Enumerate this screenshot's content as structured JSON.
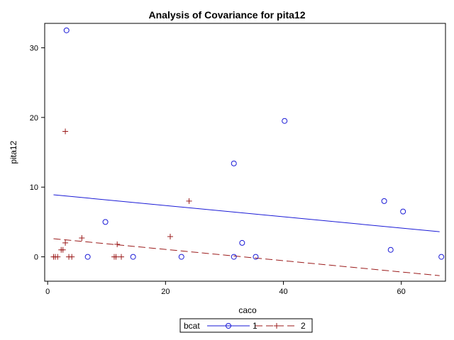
{
  "chart_data": {
    "type": "scatter",
    "title": "Analysis of Covariance for pita12",
    "xlabel": "caco",
    "ylabel": "pita12",
    "xlim": [
      -0.5,
      67.5
    ],
    "ylim": [
      -3.5,
      33.5
    ],
    "xticks": [
      0,
      20,
      40,
      60
    ],
    "yticks": [
      0,
      10,
      20,
      30
    ],
    "grid": false,
    "legend": {
      "title": "bcat",
      "placement": "bottom-center",
      "entries": [
        "1",
        "2"
      ]
    },
    "series": [
      {
        "name": "1",
        "marker": "circle",
        "color": "#1a1ad6",
        "line_style": "solid",
        "points": [
          {
            "x": 3.2,
            "y": 32.5
          },
          {
            "x": 6.8,
            "y": 0
          },
          {
            "x": 9.8,
            "y": 5.0
          },
          {
            "x": 14.5,
            "y": 0
          },
          {
            "x": 22.7,
            "y": 0
          },
          {
            "x": 31.6,
            "y": 13.4
          },
          {
            "x": 31.6,
            "y": 0
          },
          {
            "x": 33.0,
            "y": 2.0
          },
          {
            "x": 35.3,
            "y": 0
          },
          {
            "x": 40.2,
            "y": 19.5
          },
          {
            "x": 57.1,
            "y": 8.0
          },
          {
            "x": 58.2,
            "y": 1.0
          },
          {
            "x": 60.3,
            "y": 6.5
          },
          {
            "x": 66.8,
            "y": 0
          }
        ],
        "fit_line": {
          "x": [
            1.0,
            66.5
          ],
          "y": [
            8.9,
            3.6
          ]
        }
      },
      {
        "name": "2",
        "marker": "plus",
        "color": "#9b1b1b",
        "line_style": "dashed",
        "points": [
          {
            "x": 1.0,
            "y": 0
          },
          {
            "x": 1.3,
            "y": 0
          },
          {
            "x": 1.7,
            "y": 0
          },
          {
            "x": 2.3,
            "y": 1.0
          },
          {
            "x": 2.6,
            "y": 1.0
          },
          {
            "x": 3.0,
            "y": 18.0
          },
          {
            "x": 3.0,
            "y": 2.0
          },
          {
            "x": 3.6,
            "y": 0
          },
          {
            "x": 4.1,
            "y": 0
          },
          {
            "x": 5.8,
            "y": 2.7
          },
          {
            "x": 11.3,
            "y": 0
          },
          {
            "x": 11.6,
            "y": 0
          },
          {
            "x": 11.8,
            "y": 1.8
          },
          {
            "x": 12.5,
            "y": 0
          },
          {
            "x": 20.8,
            "y": 2.9
          },
          {
            "x": 24.0,
            "y": 8.0
          }
        ],
        "fit_line": {
          "x": [
            1.0,
            66.5
          ],
          "y": [
            2.6,
            -2.7
          ]
        }
      }
    ]
  }
}
